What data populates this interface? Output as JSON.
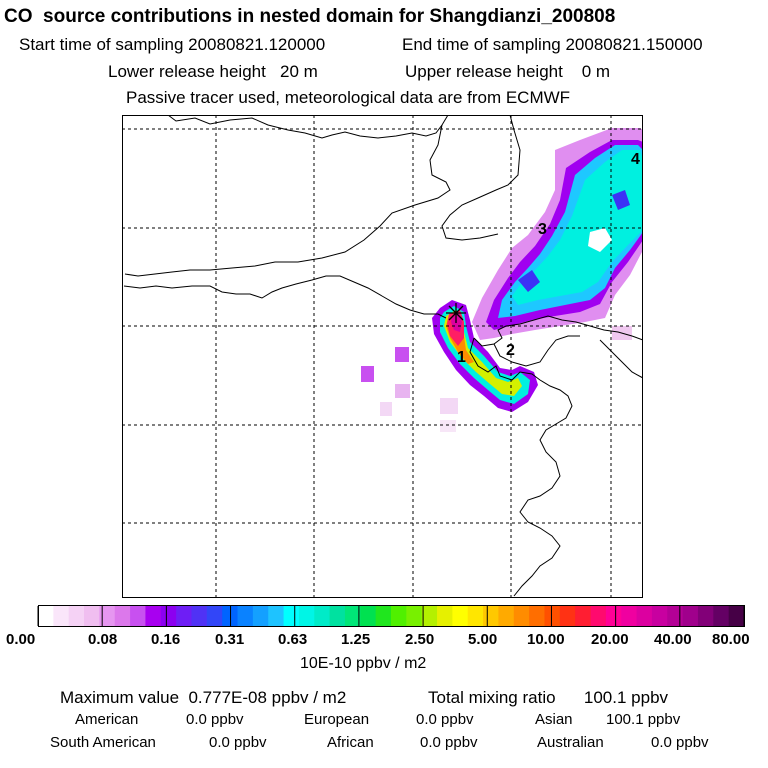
{
  "header": {
    "title": "CO  source contributions in nested domain for Shangdianzi_200808",
    "start_time": "Start time of sampling 20080821.120000",
    "end_time": "End time of sampling 20080821.150000",
    "lower_release": "Lower release height   20 m",
    "upper_release": "Upper release height    0 m",
    "tracer_note": "Passive tracer used, meteorological data are from ECMWF"
  },
  "map": {
    "receptor_marker": "*",
    "cluster_labels": [
      "1",
      "2",
      "3",
      "4"
    ]
  },
  "colorbar": {
    "labels": [
      "0.00",
      "0.08",
      "0.16",
      "0.31",
      "0.63",
      "1.25",
      "2.50",
      "5.00",
      "10.00",
      "20.00",
      "40.00",
      "80.00"
    ],
    "unit": "10E-10 ppbv / m2",
    "colors": [
      "#ffffff",
      "#fae6fa",
      "#f5d2f5",
      "#f0bef0",
      "#e696f0",
      "#dc78eb",
      "#c850f0",
      "#a800f0",
      "#8c00f0",
      "#6e1ef5",
      "#5032f5",
      "#3246f8",
      "#0064ff",
      "#0a82ff",
      "#14a0ff",
      "#1ec3ff",
      "#00ffff",
      "#00f5e6",
      "#00ebc8",
      "#00e1a0",
      "#00e678",
      "#00e150",
      "#20e61e",
      "#50f000",
      "#78f000",
      "#b4f000",
      "#e6f000",
      "#ffff00",
      "#ffe600",
      "#ffc800",
      "#ffaa00",
      "#ff8c00",
      "#ff6e00",
      "#ff5000",
      "#ff3214",
      "#ff1e32",
      "#ff0a6e",
      "#ff0096",
      "#f000a0",
      "#dc00a0",
      "#c800a0",
      "#b40096",
      "#a0008c",
      "#820078",
      "#640064",
      "#460046"
    ]
  },
  "stats": {
    "max_label": "Maximum value  0.777E-08 ppbv / m2",
    "total_label": "Total mixing ratio      100.1 ppbv",
    "american_label": "American",
    "american_value": "0.0 ppbv",
    "european_label": "European",
    "european_value": "0.0 ppbv",
    "asian_label": "Asian",
    "asian_value": "100.1 ppbv",
    "south_american_label": "South American",
    "south_american_value": "0.0 ppbv",
    "african_label": "African",
    "african_value": "0.0 ppbv",
    "australian_label": "Australian",
    "australian_value": "0.0 ppbv"
  }
}
